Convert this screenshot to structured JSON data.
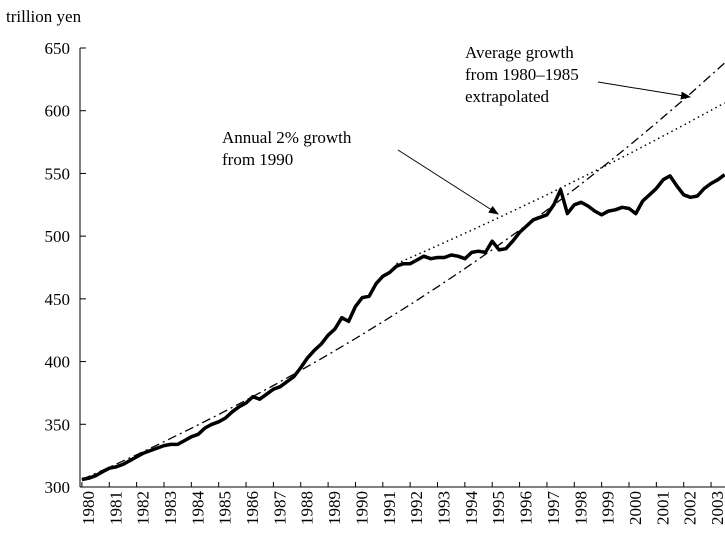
{
  "chart_data": {
    "type": "line",
    "y_label": "trillion yen",
    "annotations": [
      {
        "lines": [
          "Average growth",
          "from 1980–1985",
          "extrapolated"
        ]
      },
      {
        "lines": [
          "Annual 2% growth",
          "from 1990"
        ]
      }
    ],
    "xlim": [
      1979.93,
      2003.51
    ],
    "xticks": [
      1980,
      1981,
      1982,
      1983,
      1984,
      1985,
      1986,
      1987,
      1988,
      1989,
      1990,
      1991,
      1992,
      1993,
      1994,
      1995,
      1996,
      1997,
      1998,
      1999,
      2000,
      2001,
      2002,
      2003
    ],
    "ylim": [
      300,
      650
    ],
    "yticks": [
      300,
      350,
      400,
      450,
      500,
      550,
      600,
      650
    ],
    "series": [
      {
        "style": "solid",
        "color": "#000000",
        "x": [
          1980,
          1980.25,
          1980.5,
          1980.75,
          1981,
          1981.25,
          1981.5,
          1981.75,
          1982,
          1982.25,
          1982.5,
          1982.75,
          1983,
          1983.25,
          1983.5,
          1983.75,
          1984,
          1984.25,
          1984.5,
          1984.75,
          1985,
          1985.25,
          1985.5,
          1985.75,
          1986,
          1986.25,
          1986.5,
          1986.75,
          1987,
          1987.25,
          1987.5,
          1987.75,
          1988,
          1988.25,
          1988.5,
          1988.75,
          1989,
          1989.25,
          1989.5,
          1989.75,
          1990,
          1990.25,
          1990.5,
          1990.75,
          1991,
          1991.25,
          1991.5,
          1991.75,
          1992,
          1992.25,
          1992.5,
          1992.75,
          1993,
          1993.25,
          1993.5,
          1993.75,
          1994,
          1994.25,
          1994.5,
          1994.75,
          1995,
          1995.25,
          1995.5,
          1995.75,
          1996,
          1996.25,
          1996.5,
          1996.75,
          1997,
          1997.25,
          1997.5,
          1997.75,
          1998,
          1998.25,
          1998.5,
          1998.75,
          1999,
          1999.25,
          1999.5,
          1999.75,
          2000,
          2000.25,
          2000.5,
          2000.75,
          2001,
          2001.25,
          2001.5,
          2001.75,
          2002,
          2002.25,
          2002.5,
          2002.75,
          2003,
          2003.25,
          2003.5
        ],
        "values": [
          306,
          307,
          309,
          312,
          315,
          316,
          318,
          321,
          324,
          327,
          329,
          331,
          333,
          334,
          334,
          337,
          340,
          342,
          347,
          350,
          352,
          355,
          360,
          364,
          367,
          372,
          370,
          374,
          378,
          380,
          384,
          388,
          395,
          403,
          409,
          414,
          421,
          426,
          435,
          432,
          444,
          451,
          452,
          462,
          468,
          471,
          476,
          478,
          478,
          481,
          484,
          482,
          483,
          483,
          485,
          484,
          482,
          487,
          488,
          487,
          496,
          489,
          490,
          496,
          503,
          508,
          513,
          515,
          517,
          525,
          537,
          518,
          525,
          527,
          524,
          520,
          517,
          520,
          521,
          523,
          522,
          518,
          528,
          533,
          538,
          545,
          548,
          540,
          533,
          531,
          532,
          538,
          542,
          545,
          549
        ]
      },
      {
        "style": "dashdot",
        "color": "#000000",
        "x": [
          1980,
          1981,
          1982,
          1983,
          1984,
          1985,
          1986,
          1987,
          1988,
          1989,
          1990,
          1991,
          1992,
          1993,
          1994,
          1995,
          1996,
          1997,
          1998,
          1999,
          2000,
          2001,
          2002,
          2003,
          2003.5
        ],
        "values": [
          306,
          315.7,
          325.7,
          336.1,
          346.8,
          357.8,
          369.2,
          380.9,
          393.0,
          405.5,
          418.4,
          431.7,
          445.4,
          459.5,
          474.1,
          489.2,
          504.7,
          520.8,
          537.3,
          554.4,
          572.0,
          590.2,
          608.9,
          628.3,
          638.1
        ]
      },
      {
        "style": "dotted",
        "color": "#000000",
        "x": [
          1991.5,
          1992,
          1993,
          1994,
          1995,
          1996,
          1997,
          1998,
          1999,
          2000,
          2001,
          2002,
          2003,
          2003.5
        ],
        "values": [
          478,
          482.8,
          492.4,
          502.3,
          512.3,
          522.6,
          533.0,
          543.7,
          554.6,
          565.6,
          577.0,
          588.5,
          600.3,
          606.2
        ]
      }
    ]
  }
}
